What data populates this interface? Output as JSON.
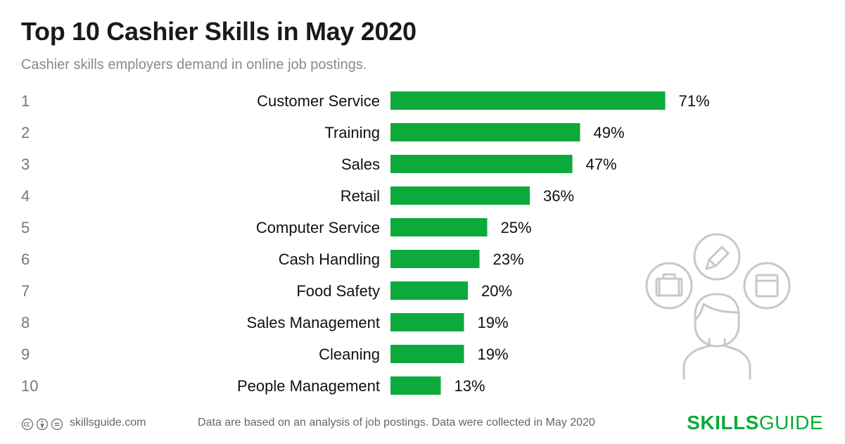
{
  "header": {
    "title": "Top 10 Cashier Skills in May 2020",
    "subtitle": "Cashier skills employers demand in online job postings."
  },
  "chart_data": {
    "type": "bar",
    "orientation": "horizontal",
    "ranks": [
      "1",
      "2",
      "3",
      "4",
      "5",
      "6",
      "7",
      "8",
      "9",
      "10"
    ],
    "categories": [
      "Customer Service",
      "Training",
      "Sales",
      "Retail",
      "Computer Service",
      "Cash Handling",
      "Food Safety",
      "Sales Management",
      "Cleaning",
      "People Management"
    ],
    "values": [
      71,
      49,
      47,
      36,
      25,
      23,
      20,
      19,
      19,
      13
    ],
    "value_labels": [
      "71%",
      "49%",
      "47%",
      "36%",
      "25%",
      "23%",
      "20%",
      "19%",
      "19%",
      "13%"
    ],
    "xlim": [
      0,
      100
    ],
    "grid": false,
    "bar_color": "#0caa3a"
  },
  "footer": {
    "site": "skillsguide.com",
    "note": "Data are based on an analysis of job postings. Data were collected in May 2020",
    "brand_bold": "SKILLS",
    "brand_light": "GUIDE"
  },
  "icons": {
    "license": [
      "creative-commons-icon",
      "attribution-icon",
      "no-derivatives-icon"
    ],
    "illustration": [
      "person-icon",
      "briefcase-icon",
      "pencil-icon",
      "browser-window-icon"
    ]
  },
  "colors": {
    "accent": "#0caa3a",
    "rank_text": "#777777",
    "subtitle_text": "#8a8a8a",
    "illustration_stroke": "#c8c8c8"
  }
}
